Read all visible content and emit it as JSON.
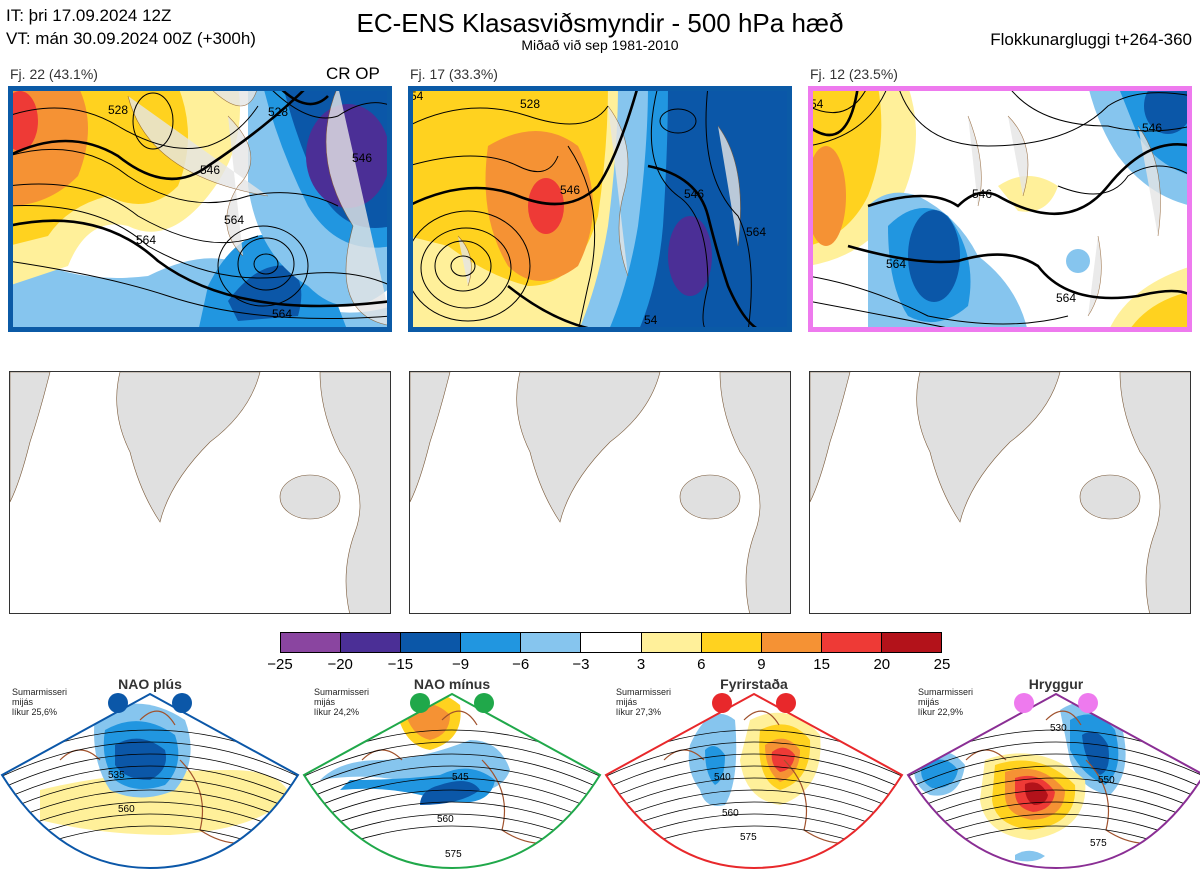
{
  "header": {
    "it_line": "IT: þri 17.09.2024 12Z",
    "vt_line": "VT: mán 30.09.2024 00Z  (+300h)",
    "title": "EC-ENS Klasasviðsmyndir - 500 hPa hæð",
    "subtitle": "Miðað við sep 1981-2010",
    "window": "Flokkunargluggi t+264-360"
  },
  "clusters": [
    {
      "label": "Fj. 22 (43.1%)",
      "frame_color": "#0b5aa6",
      "tag": "CR OP",
      "contours": [
        "528",
        "546",
        "546",
        "564",
        "564",
        "528",
        "546",
        "564"
      ]
    },
    {
      "label": "Fj. 17 (33.3%)",
      "frame_color": "#0b5aa6",
      "tag": "",
      "contours": [
        "54",
        "546",
        "528",
        "546",
        "564",
        "54"
      ]
    },
    {
      "label": "Fj. 12 (23.5%)",
      "frame_color": "#ee7aee",
      "tag": "",
      "contours": [
        "54",
        "546",
        "546",
        "564",
        "564",
        "546"
      ]
    }
  ],
  "colorbar": {
    "ticks": [
      "−25",
      "−20",
      "−15",
      "−9",
      "−6",
      "−3",
      "3",
      "6",
      "9",
      "15",
      "20",
      "25"
    ],
    "colors": [
      "#8a45a0",
      "#4b2f96",
      "#0b57a8",
      "#2196e0",
      "#86c5ee",
      "#ffffff",
      "#fff09a",
      "#ffd21f",
      "#f59234",
      "#ee3a36",
      "#b3121a"
    ]
  },
  "regimes": [
    {
      "title": "NAO plús",
      "season": "Sumarmisseri",
      "avg": "mijás",
      "prob": "líkur 25,6%",
      "dot_color": "#0b57a8",
      "frame_color": "#0b57a8",
      "contours": [
        "535",
        "560"
      ]
    },
    {
      "title": "NAO mínus",
      "season": "Sumarmisseri",
      "avg": "mijás",
      "prob": "líkur 24,2%",
      "dot_color": "#20a84a",
      "frame_color": "#20a84a",
      "contours": [
        "545",
        "560",
        "575"
      ]
    },
    {
      "title": "Fyrirstaða",
      "season": "Sumarmisseri",
      "avg": "mijás",
      "prob": "líkur 27,3%",
      "dot_color": "#e8282b",
      "frame_color": "#e8282b",
      "contours": [
        "540",
        "560",
        "575"
      ]
    },
    {
      "title": "Hryggur",
      "season": "Sumarmisseri",
      "avg": "mijás",
      "prob": "líkur 22,9%",
      "dot_color": "#ee7aee",
      "frame_color": "#8a2e94",
      "contours": [
        "530",
        "550",
        "575"
      ]
    }
  ]
}
